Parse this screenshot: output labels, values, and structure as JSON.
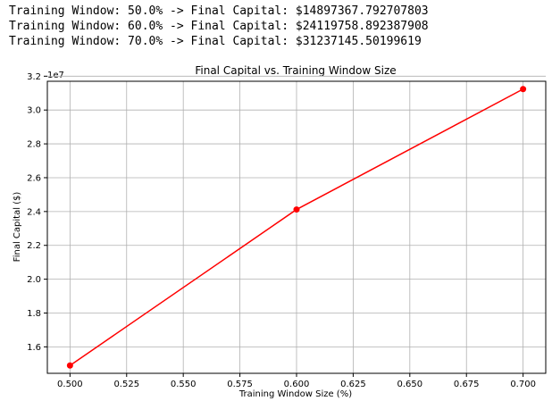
{
  "output": {
    "lines": [
      "Training Window: 50.0% -> Final Capital: $14897367.792707803",
      "Training Window: 60.0% -> Final Capital: $24119758.892387908",
      "Training Window: 70.0% -> Final Capital: $31237145.50199619"
    ]
  },
  "chart_data": {
    "type": "line",
    "title": "Final Capital vs. Training Window Size",
    "xlabel": "Training Window Size (%)",
    "ylabel": "Final Capital ($)",
    "y_offset_label": "1e7",
    "x": [
      0.5,
      0.6,
      0.7
    ],
    "series": [
      {
        "values": [
          14897367.792707803,
          24119758.892387908,
          31237145.50199619
        ],
        "color": "#ff0000",
        "marker": "circle"
      }
    ],
    "xlim": [
      0.49,
      0.71
    ],
    "ylim": [
      14436000,
      31700000
    ],
    "xticks": [
      0.5,
      0.525,
      0.55,
      0.575,
      0.6,
      0.625,
      0.65,
      0.675,
      0.7
    ],
    "xtick_labels": [
      "0.500",
      "0.525",
      "0.550",
      "0.575",
      "0.600",
      "0.625",
      "0.650",
      "0.675",
      "0.700"
    ],
    "yticks": [
      16000000,
      18000000,
      20000000,
      22000000,
      24000000,
      26000000,
      28000000,
      30000000,
      32000000
    ],
    "ytick_labels": [
      "1.6",
      "1.8",
      "2.0",
      "2.2",
      "2.4",
      "2.6",
      "2.8",
      "3.0",
      "3.2"
    ],
    "grid": true
  }
}
